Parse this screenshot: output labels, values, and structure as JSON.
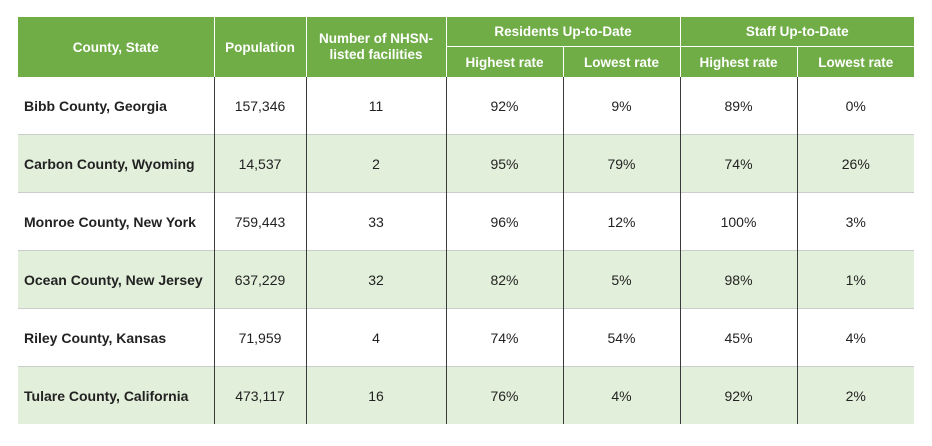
{
  "header": {
    "county_state": "County, State",
    "population": "Population",
    "nhsn_line1": "Number of NHSN-",
    "nhsn_line2": "listed facilities",
    "residents_group": "Residents Up-to-Date",
    "staff_group": "Staff Up-to-Date",
    "residents_highest": "Highest rate",
    "residents_lowest": "Lowest rate",
    "staff_highest": "Highest rate",
    "staff_lowest": "Lowest rate"
  },
  "rows": [
    {
      "county": "Bibb County, Georgia",
      "population": "157,346",
      "facilities": "11",
      "res_high": "92%",
      "res_low": "9%",
      "staff_high": "89%",
      "staff_low": "0%"
    },
    {
      "county": "Carbon County, Wyoming",
      "population": "14,537",
      "facilities": "2",
      "res_high": "95%",
      "res_low": "79%",
      "staff_high": "74%",
      "staff_low": "26%"
    },
    {
      "county": "Monroe County, New York",
      "population": "759,443",
      "facilities": "33",
      "res_high": "96%",
      "res_low": "12%",
      "staff_high": "100%",
      "staff_low": "3%"
    },
    {
      "county": "Ocean County, New Jersey",
      "population": "637,229",
      "facilities": "32",
      "res_high": "82%",
      "res_low": "5%",
      "staff_high": "98%",
      "staff_low": "1%"
    },
    {
      "county": "Riley County, Kansas",
      "population": "71,959",
      "facilities": "4",
      "res_high": "74%",
      "res_low": "54%",
      "staff_high": "45%",
      "staff_low": "4%"
    },
    {
      "county": "Tulare County, California",
      "population": "473,117",
      "facilities": "16",
      "res_high": "76%",
      "res_low": "4%",
      "staff_high": "92%",
      "staff_low": "2%"
    }
  ],
  "colors": {
    "header_green": "#70ad47",
    "alt_row_green": "#e2efda"
  }
}
